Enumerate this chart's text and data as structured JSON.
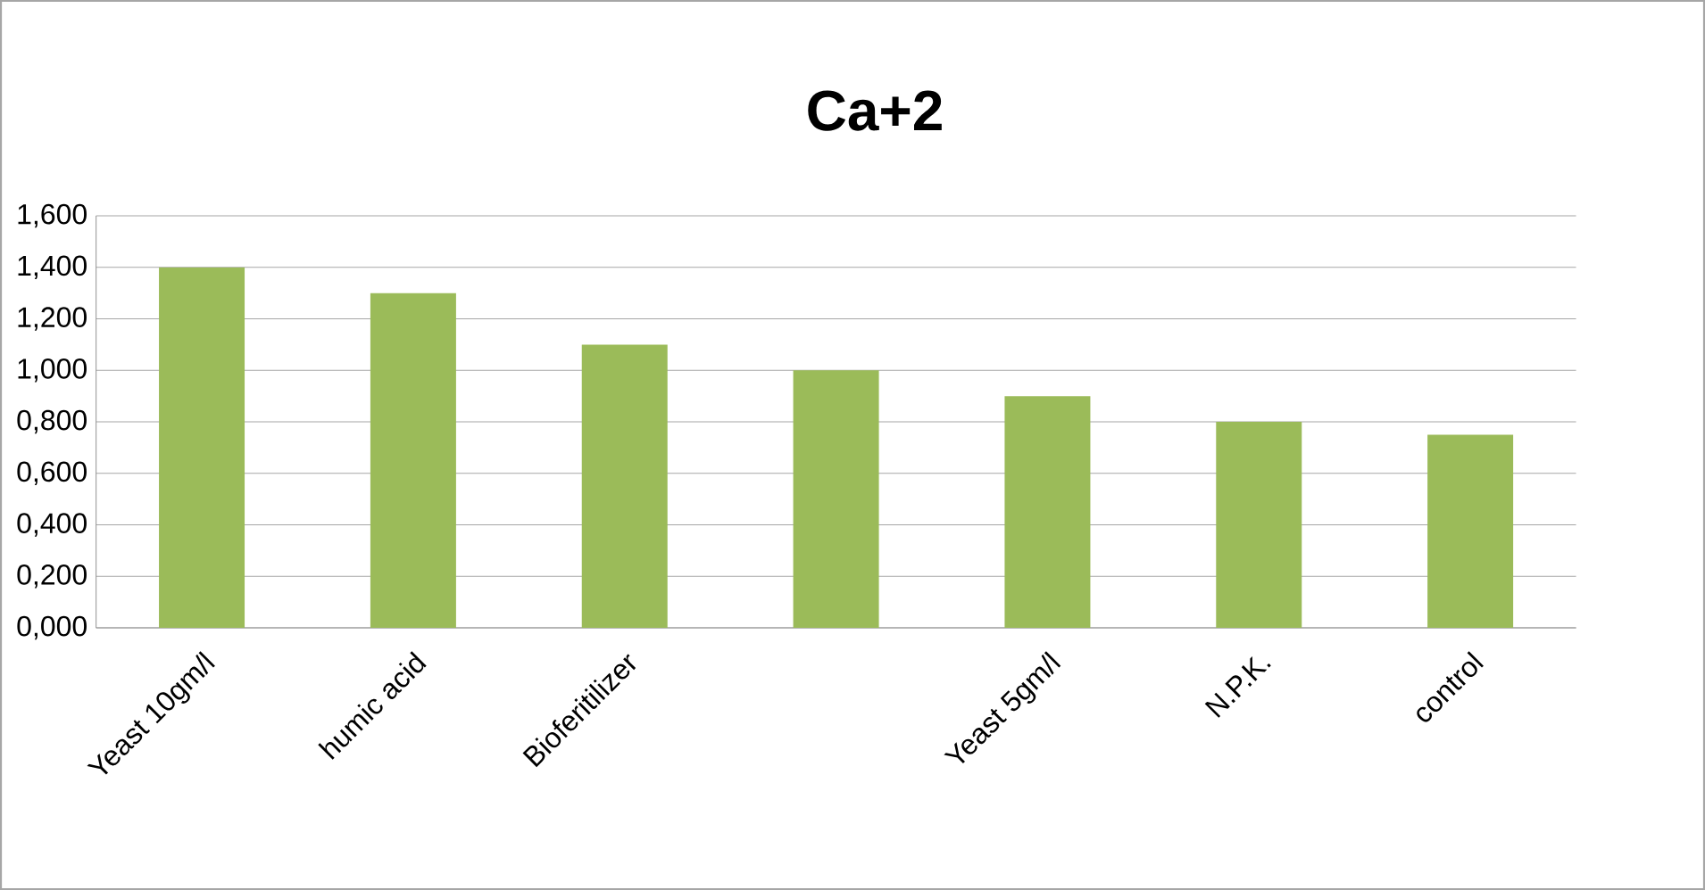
{
  "chart_data": {
    "type": "bar",
    "title": "Ca+2",
    "categories": [
      "Yeast 10gm/l",
      "humic acid",
      "Bioferitilizer",
      null,
      "Yeast 5gm/l",
      "N.P.K.",
      "control"
    ],
    "values": [
      1.4,
      1.3,
      1.1,
      1.0,
      0.9,
      0.8,
      0.75
    ],
    "color": "#9bbb59",
    "ylim": [
      0,
      1.6
    ],
    "yticks": [
      {
        "value": 0,
        "label": "0,000"
      },
      {
        "value": 0.2,
        "label": "0,200"
      },
      {
        "value": 0.4,
        "label": "0,400"
      },
      {
        "value": 0.6,
        "label": "0,600"
      },
      {
        "value": 0.8,
        "label": "0,800"
      },
      {
        "value": 1.0,
        "label": "1,000"
      },
      {
        "value": 1.2,
        "label": "1,200"
      },
      {
        "value": 1.4,
        "label": "1,400"
      },
      {
        "value": 1.6,
        "label": "1,600"
      }
    ],
    "grid": "y"
  }
}
